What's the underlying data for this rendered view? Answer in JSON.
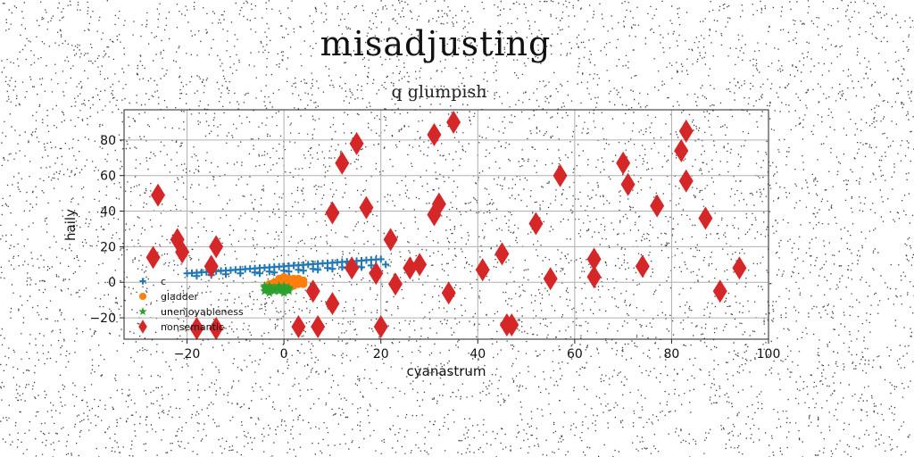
{
  "title": "misadjusting",
  "subtitle": "q glumpish",
  "chart_data": {
    "type": "scatter",
    "xlabel": "cyanastrum",
    "ylabel": "haily",
    "xlim": [
      -33,
      100
    ],
    "ylim": [
      -32,
      97
    ],
    "xticks": [
      -20,
      0,
      20,
      40,
      60,
      80,
      100
    ],
    "yticks": [
      -20,
      0,
      20,
      40,
      60,
      80
    ],
    "grid": true,
    "legend_position": "lower-left",
    "series": [
      {
        "name": "c",
        "marker": "plus",
        "color": "#1f77b4",
        "points": [
          [
            -20,
            5.0
          ],
          [
            -19,
            5.2
          ],
          [
            -18,
            5.4
          ],
          [
            -17,
            5.6
          ],
          [
            -16,
            5.8
          ],
          [
            -15,
            6.0
          ],
          [
            -14,
            6.2
          ],
          [
            -13,
            6.4
          ],
          [
            -12,
            6.6
          ],
          [
            -11,
            6.8
          ],
          [
            -10,
            7.0
          ],
          [
            -9,
            7.2
          ],
          [
            -8,
            7.4
          ],
          [
            -7,
            7.6
          ],
          [
            -6,
            7.8
          ],
          [
            -5,
            8.0
          ],
          [
            -4,
            8.2
          ],
          [
            -3,
            8.4
          ],
          [
            -2,
            8.6
          ],
          [
            -1,
            8.8
          ],
          [
            0,
            9.0
          ],
          [
            1,
            9.2
          ],
          [
            2,
            9.4
          ],
          [
            3,
            9.6
          ],
          [
            4,
            9.8
          ],
          [
            5,
            10.0
          ],
          [
            6,
            10.2
          ],
          [
            7,
            10.4
          ],
          [
            8,
            10.6
          ],
          [
            9,
            10.8
          ],
          [
            10,
            11.0
          ],
          [
            11,
            11.2
          ],
          [
            12,
            11.4
          ],
          [
            13,
            11.6
          ],
          [
            14,
            11.8
          ],
          [
            15,
            12.0
          ],
          [
            16,
            12.2
          ],
          [
            17,
            12.4
          ],
          [
            18,
            12.6
          ],
          [
            19,
            12.8
          ],
          [
            20,
            13.0
          ],
          [
            -18,
            3.5
          ],
          [
            -15,
            4.0
          ],
          [
            -12,
            4.5
          ],
          [
            -9,
            5.0
          ],
          [
            -6,
            5.5
          ],
          [
            -3,
            6.0
          ],
          [
            0,
            6.5
          ],
          [
            3,
            7.0
          ],
          [
            6,
            7.5
          ],
          [
            9,
            8.0
          ],
          [
            12,
            8.5
          ],
          [
            15,
            9.0
          ],
          [
            18,
            9.5
          ],
          [
            21,
            10.0
          ],
          [
            -5,
            5.0
          ],
          [
            -2,
            5.5
          ],
          [
            1,
            6.0
          ],
          [
            4,
            6.5
          ],
          [
            7,
            7.0
          ],
          [
            10,
            7.5
          ],
          [
            13,
            8.0
          ],
          [
            16,
            8.5
          ]
        ]
      },
      {
        "name": "gladder",
        "marker": "circle",
        "color": "#ff7f0e",
        "points": [
          [
            -3,
            -1
          ],
          [
            -2,
            0
          ],
          [
            -1,
            1
          ],
          [
            0,
            -2
          ],
          [
            1,
            2
          ],
          [
            2,
            0
          ],
          [
            3,
            -1
          ],
          [
            4,
            1
          ],
          [
            -1,
            -3
          ],
          [
            0,
            3
          ],
          [
            1,
            -1
          ],
          [
            2,
            2
          ],
          [
            3,
            0
          ],
          [
            -2,
            -2
          ],
          [
            0,
            0
          ],
          [
            1,
            1
          ],
          [
            2,
            -2
          ],
          [
            -1,
            2
          ],
          [
            3,
            2
          ],
          [
            4,
            -1
          ]
        ]
      },
      {
        "name": "unenjoyableness",
        "marker": "star",
        "color": "#2ca02c",
        "points": [
          [
            -4,
            -3
          ],
          [
            -3,
            -2
          ],
          [
            -2,
            -4
          ],
          [
            -1,
            -3
          ],
          [
            0,
            -2
          ],
          [
            1,
            -4
          ],
          [
            -4,
            -5
          ],
          [
            -3,
            -4
          ],
          [
            -2,
            -3
          ],
          [
            -1,
            -5
          ],
          [
            0,
            -4
          ],
          [
            1,
            -3
          ],
          [
            -3,
            -6
          ],
          [
            -2,
            -5
          ],
          [
            0,
            -6
          ],
          [
            -1,
            -2
          ],
          [
            -4,
            -2
          ],
          [
            1,
            -5
          ]
        ]
      },
      {
        "name": "nonsemantic",
        "marker": "diamond",
        "color": "#d62728",
        "points": [
          [
            -26,
            49
          ],
          [
            -27,
            14
          ],
          [
            -22,
            24
          ],
          [
            -21,
            17
          ],
          [
            -14,
            20
          ],
          [
            -15,
            9
          ],
          [
            -18,
            -26
          ],
          [
            -14,
            -26
          ],
          [
            3,
            -25
          ],
          [
            7,
            -25
          ],
          [
            6,
            -5
          ],
          [
            10,
            -12
          ],
          [
            10,
            39
          ],
          [
            12,
            67
          ],
          [
            15,
            78
          ],
          [
            17,
            42
          ],
          [
            14,
            8
          ],
          [
            19,
            5
          ],
          [
            20,
            -25
          ],
          [
            22,
            24
          ],
          [
            23,
            -1
          ],
          [
            26,
            8
          ],
          [
            28,
            10
          ],
          [
            31,
            83
          ],
          [
            31,
            38
          ],
          [
            32,
            44
          ],
          [
            34,
            -6
          ],
          [
            35,
            90
          ],
          [
            41,
            7
          ],
          [
            45,
            16
          ],
          [
            46,
            -24
          ],
          [
            47,
            -24
          ],
          [
            52,
            33
          ],
          [
            55,
            2
          ],
          [
            57,
            60
          ],
          [
            64,
            13
          ],
          [
            64,
            3
          ],
          [
            70,
            67
          ],
          [
            71,
            55
          ],
          [
            74,
            9
          ],
          [
            77,
            43
          ],
          [
            82,
            74
          ],
          [
            83,
            85
          ],
          [
            83,
            57
          ],
          [
            87,
            36
          ],
          [
            90,
            -5
          ],
          [
            94,
            8
          ]
        ]
      }
    ]
  }
}
